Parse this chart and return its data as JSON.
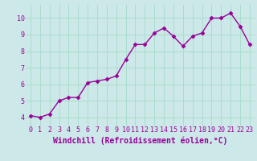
{
  "x": [
    0,
    1,
    2,
    3,
    4,
    5,
    6,
    7,
    8,
    9,
    10,
    11,
    12,
    13,
    14,
    15,
    16,
    17,
    18,
    19,
    20,
    21,
    22,
    23
  ],
  "y": [
    4.1,
    4.0,
    4.2,
    5.0,
    5.2,
    5.2,
    6.1,
    6.2,
    6.3,
    6.5,
    7.5,
    8.4,
    8.4,
    9.1,
    9.4,
    8.9,
    8.3,
    8.9,
    9.1,
    10.0,
    10.0,
    10.3,
    9.5,
    8.4
  ],
  "line_color": "#990099",
  "marker": "D",
  "marker_size": 2.5,
  "xlabel": "Windchill (Refroidissement éolien,°C)",
  "xlabel_fontsize": 7,
  "xlim": [
    -0.5,
    23.5
  ],
  "ylim": [
    3.5,
    10.8
  ],
  "yticks": [
    4,
    5,
    6,
    7,
    8,
    9,
    10
  ],
  "xticks": [
    0,
    1,
    2,
    3,
    4,
    5,
    6,
    7,
    8,
    9,
    10,
    11,
    12,
    13,
    14,
    15,
    16,
    17,
    18,
    19,
    20,
    21,
    22,
    23
  ],
  "xtick_labels": [
    "0",
    "1",
    "2",
    "3",
    "4",
    "5",
    "6",
    "7",
    "8",
    "9",
    "10",
    "11",
    "12",
    "13",
    "14",
    "15",
    "16",
    "17",
    "18",
    "19",
    "20",
    "21",
    "22",
    "23"
  ],
  "grid_color": "#aaddcc",
  "background_color": "#cce8e8",
  "tick_fontsize": 6,
  "line_width": 1.0
}
